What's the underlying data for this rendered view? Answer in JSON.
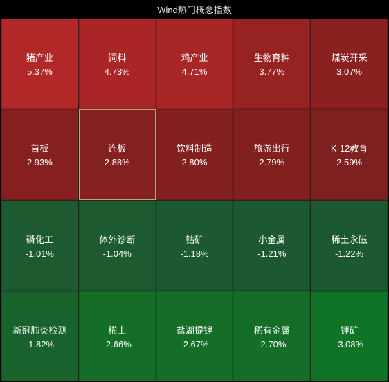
{
  "title": "Wind热门概念指数",
  "grid": {
    "rows": 4,
    "cols": 5,
    "background_color": "#000000",
    "gap_color": "#242424",
    "text_color": "#ffffff",
    "title_color": "#e8e8e8",
    "title_fontsize": 13,
    "cell_fontsize": 13,
    "highlight_border_color": "#b8a878",
    "cells": [
      {
        "name": "猪产业",
        "value": "5.37%",
        "color": "#b02828",
        "highlighted": false
      },
      {
        "name": "饲料",
        "value": "4.73%",
        "color": "#aa2626",
        "highlighted": false
      },
      {
        "name": "鸡产业",
        "value": "4.71%",
        "color": "#a82626",
        "highlighted": false
      },
      {
        "name": "生物育种",
        "value": "3.77%",
        "color": "#962222",
        "highlighted": false
      },
      {
        "name": "煤炭开采",
        "value": "3.07%",
        "color": "#8a2020",
        "highlighted": false
      },
      {
        "name": "首板",
        "value": "2.93%",
        "color": "#862020",
        "highlighted": false
      },
      {
        "name": "连板",
        "value": "2.88%",
        "color": "#842020",
        "highlighted": true
      },
      {
        "name": "饮料制造",
        "value": "2.80%",
        "color": "#822020",
        "highlighted": false
      },
      {
        "name": "旅游出行",
        "value": "2.79%",
        "color": "#822020",
        "highlighted": false
      },
      {
        "name": "K-12教育",
        "value": "2.59%",
        "color": "#7e2020",
        "highlighted": false
      },
      {
        "name": "磷化工",
        "value": "-1.01%",
        "color": "#1e5a30",
        "highlighted": false
      },
      {
        "name": "体外诊断",
        "value": "-1.04%",
        "color": "#1e5a30",
        "highlighted": false
      },
      {
        "name": "钴矿",
        "value": "-1.18%",
        "color": "#1c5830",
        "highlighted": false
      },
      {
        "name": "小金属",
        "value": "-1.21%",
        "color": "#1c5830",
        "highlighted": false
      },
      {
        "name": "稀土永磁",
        "value": "-1.22%",
        "color": "#1c5830",
        "highlighted": false
      },
      {
        "name": "新冠肺炎检测",
        "value": "-1.82%",
        "color": "#18622c",
        "highlighted": false
      },
      {
        "name": "稀土",
        "value": "-2.66%",
        "color": "#146e28",
        "highlighted": false
      },
      {
        "name": "盐湖提锂",
        "value": "-2.67%",
        "color": "#146e28",
        "highlighted": false
      },
      {
        "name": "稀有金属",
        "value": "-2.70%",
        "color": "#146e28",
        "highlighted": false
      },
      {
        "name": "锂矿",
        "value": "-3.08%",
        "color": "#107426",
        "highlighted": false
      }
    ]
  }
}
